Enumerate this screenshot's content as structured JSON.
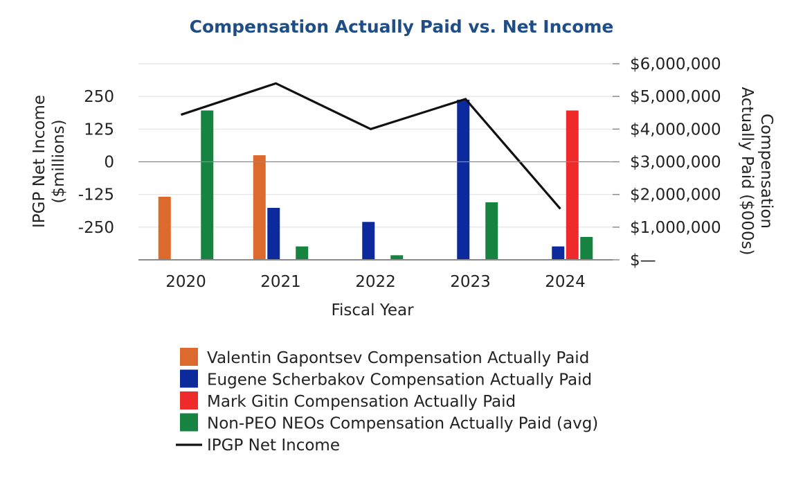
{
  "chart_data": {
    "type": "bar+line",
    "title": "Compensation Actually Paid vs. Net Income",
    "categories": [
      "2020",
      "2021",
      "2022",
      "2023",
      "2024"
    ],
    "xlabel": "Fiscal Year",
    "y_left": {
      "label_lines": [
        "IPGP Net Income",
        "($millions)"
      ],
      "ticks": [
        250,
        125,
        0,
        -125,
        -250
      ],
      "tick_labels": [
        "250",
        "125",
        "0",
        "-125",
        "-250"
      ],
      "range": [
        -375,
        375
      ]
    },
    "y_right": {
      "label_lines": [
        "Compensation",
        "Actually Paid ($000s)"
      ],
      "ticks": [
        6000000,
        5000000,
        4000000,
        3000000,
        2000000,
        1000000,
        0
      ],
      "tick_labels": [
        "$6,000,000",
        "$5,000,000",
        "$4,000,000",
        "$3,000,000",
        "$2,000,000",
        "$1,000,000",
        "$—"
      ],
      "range": [
        0,
        6000000
      ]
    },
    "series": [
      {
        "name": "Valentin Gapontsev Compensation Actually Paid",
        "type": "bar",
        "axis": "right",
        "color": "#dd6a2d",
        "values": [
          1930000,
          3200000,
          null,
          null,
          null
        ]
      },
      {
        "name": "Eugene Scherbakov Compensation Actually Paid",
        "type": "bar",
        "axis": "right",
        "color": "#0d2a9c",
        "values": [
          null,
          1590000,
          1160000,
          4900000,
          410000
        ]
      },
      {
        "name": "Mark Gitin Compensation Actually Paid",
        "type": "bar",
        "axis": "right",
        "color": "#ee2a2a",
        "values": [
          null,
          null,
          null,
          null,
          4570000
        ]
      },
      {
        "name": "Non-PEO NEOs Compensation Actually Paid (avg)",
        "type": "bar",
        "axis": "right",
        "color": "#168340",
        "values": [
          4570000,
          410000,
          140000,
          1760000,
          700000
        ]
      },
      {
        "name": "IPGP Net Income",
        "type": "line",
        "axis": "left",
        "color": "#111111",
        "values": [
          180,
          300,
          125,
          240,
          -180
        ]
      }
    ]
  }
}
